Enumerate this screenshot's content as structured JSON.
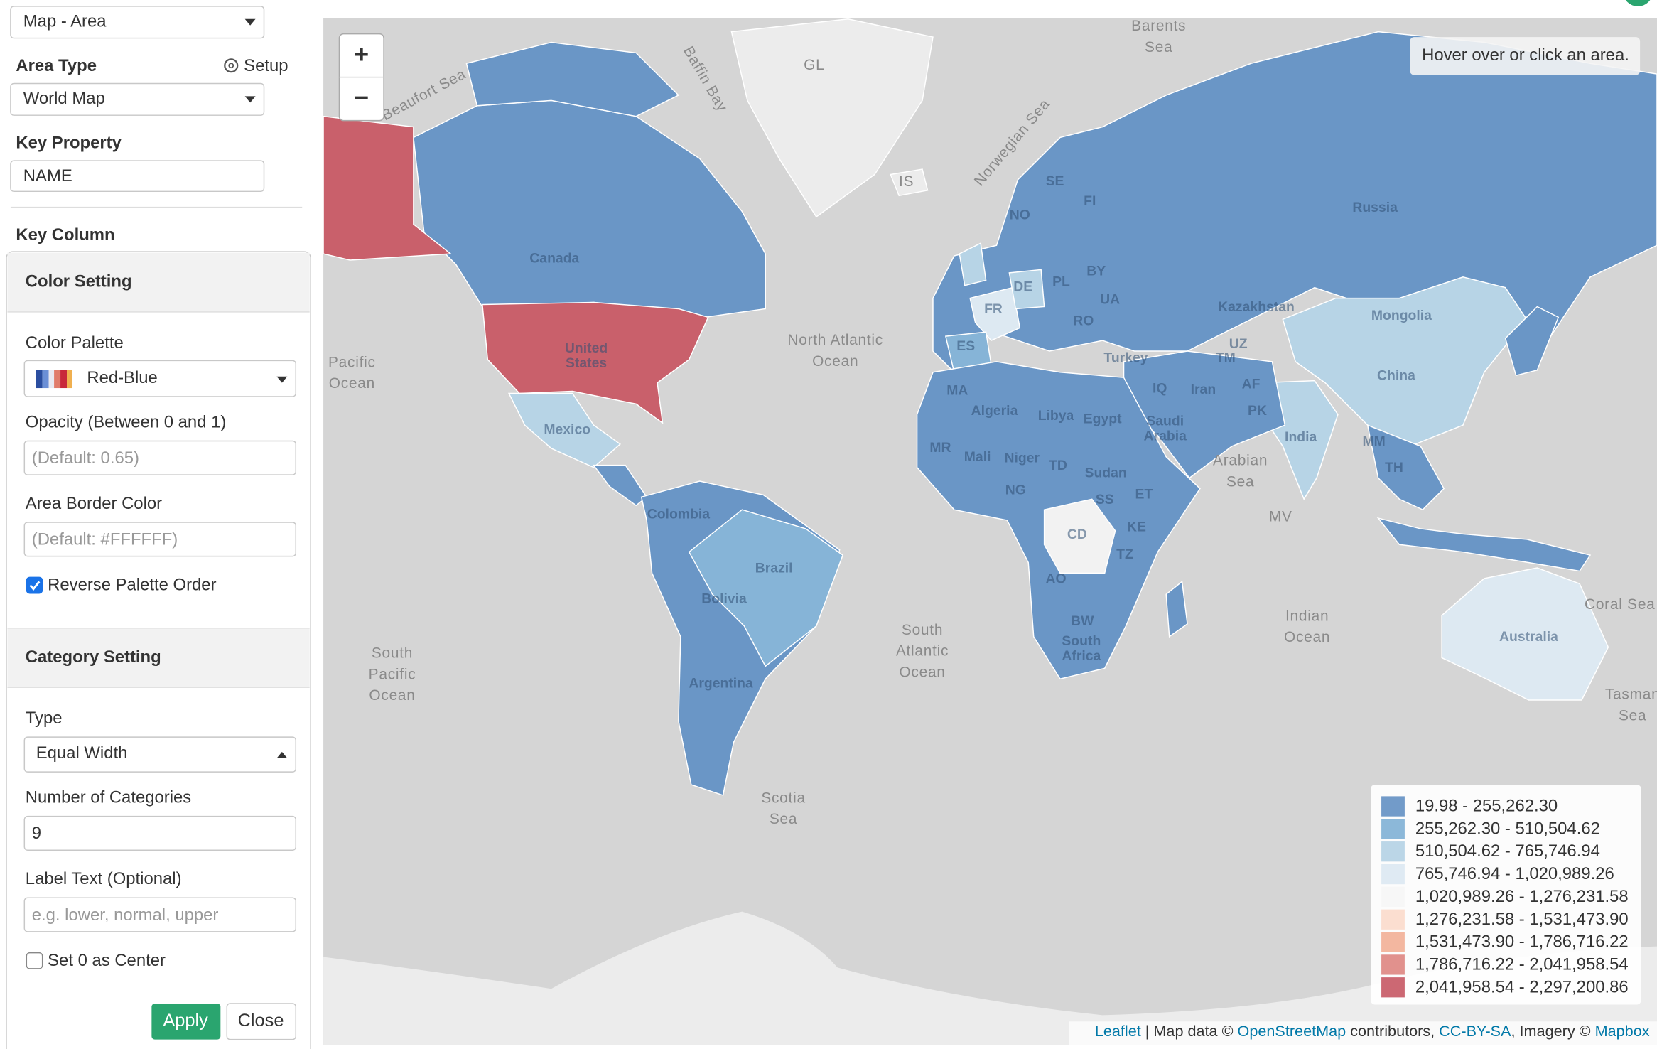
{
  "sidebar": {
    "chart_type": "Map - Area",
    "area_type_label": "Area Type",
    "setup": "Setup",
    "area_type": "World Map",
    "key_property_label": "Key Property",
    "key_property": "NAME",
    "key_column_label": "Key Column",
    "color_setting": {
      "title": "Color Setting",
      "palette_label": "Color Palette",
      "palette": "Red-Blue",
      "opacity_label": "Opacity (Between 0 and 1)",
      "opacity_placeholder": "(Default: 0.65)",
      "border_label": "Area Border Color",
      "border_placeholder": "(Default: #FFFFFF)",
      "reverse_label": "Reverse Palette Order",
      "reverse_checked": true
    },
    "category_setting": {
      "title": "Category Setting",
      "type_label": "Type",
      "type": "Equal Width",
      "count_label": "Number of Categories",
      "count": 9,
      "label_text_label": "Label Text (Optional)",
      "label_placeholder": "e.g. lower, normal, upper",
      "center_label": "Set 0 as Center",
      "center_checked": false
    },
    "buttons": {
      "apply": "Apply",
      "close": "Close"
    }
  },
  "map": {
    "zoom_in": "+",
    "zoom_out": "−",
    "info": "Hover over or click an area.",
    "labels": [
      [
        "Beaufort Sea"
      ],
      [
        "Baffin Bay"
      ],
      [
        "GL"
      ],
      [
        "Barents",
        "Sea"
      ],
      [
        "IS"
      ],
      [
        "Norwegian Sea"
      ],
      [
        "North Atlantic",
        "Ocean"
      ],
      [
        "Pacific",
        "Ocean"
      ],
      [
        "South",
        "Pacific",
        "Ocean"
      ],
      [
        "South",
        "Atlantic",
        "Ocean"
      ],
      [
        "Indian",
        "Ocean"
      ],
      [
        "Arabian",
        "Sea"
      ],
      [
        "Scotia",
        "Sea"
      ],
      [
        "Coral Sea"
      ],
      [
        "Tasman",
        "Sea"
      ],
      [
        "MV"
      ],
      [
        "Canada"
      ],
      [
        "Russia"
      ],
      [
        "United",
        "States"
      ],
      [
        "Mexico"
      ],
      [
        "Kazakhstan"
      ],
      [
        "Mongolia"
      ],
      [
        "China"
      ],
      [
        "India"
      ],
      [
        "Turkey"
      ],
      [
        "Iran"
      ],
      [
        "Algeria"
      ],
      [
        "Libya"
      ],
      [
        "Egypt"
      ],
      [
        "Saudi",
        "Arabia"
      ],
      [
        "Mali"
      ],
      [
        "Niger"
      ],
      [
        "Sudan"
      ],
      [
        "Brazil"
      ],
      [
        "Colombia"
      ],
      [
        "Argentina"
      ],
      [
        "Bolivia"
      ],
      [
        "Australia"
      ],
      [
        "CD"
      ],
      [
        "SS"
      ],
      [
        "TD"
      ],
      [
        "NG"
      ],
      [
        "ET"
      ],
      [
        "KE"
      ],
      [
        "TZ"
      ],
      [
        "AO"
      ],
      [
        "BW"
      ],
      [
        "South",
        "Africa"
      ],
      [
        "MR"
      ],
      [
        "MA"
      ],
      [
        "ES"
      ],
      [
        "FR"
      ],
      [
        "DE"
      ],
      [
        "PL"
      ],
      [
        "BY"
      ],
      [
        "UA"
      ],
      [
        "RO"
      ],
      [
        "SE"
      ],
      [
        "FI"
      ],
      [
        "NO"
      ],
      [
        "AF"
      ],
      [
        "PK"
      ],
      [
        "TM"
      ],
      [
        "UZ"
      ],
      [
        "MM"
      ],
      [
        "TH"
      ],
      [
        "IQ"
      ]
    ],
    "legend": [
      "19.98 - 255,262.30",
      "255,262.30 - 510,504.62",
      "510,504.62 - 765,746.94",
      "765,746.94 - 1,020,989.26",
      "1,020,989.26 - 1,276,231.58",
      "1,276,231.58 - 1,531,473.90",
      "1,531,473.90 - 1,786,716.22",
      "1,786,716.22 - 2,041,958.54",
      "2,041,958.54 - 2,297,200.86"
    ],
    "legend_colors": [
      "#6a96c6",
      "#86b4d7",
      "#b7d4e6",
      "#dde9f2",
      "#f7f7f7",
      "#fbdccd",
      "#f2b39b",
      "#df8b87",
      "#c9606b"
    ],
    "attribution": [
      "Leaflet",
      " | Map data © ",
      "OpenStreetMap",
      " contributors, ",
      "CC-BY-SA",
      ", Imagery © ",
      "Mapbox"
    ]
  }
}
